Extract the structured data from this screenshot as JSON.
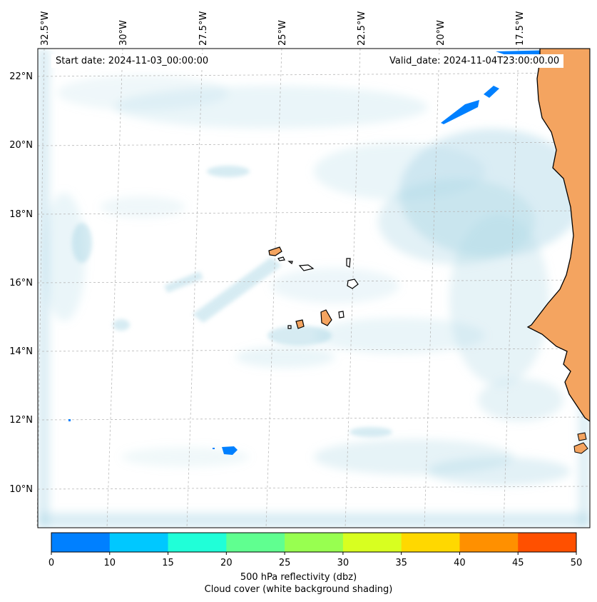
{
  "header": {
    "start_date": "Start date: 2024-11-03_00:00:00",
    "valid_date": "Valid_date: 2024-11-04T23:00:00.00"
  },
  "axes": {
    "lon_labels": [
      "32.5°W",
      "30°W",
      "27.5°W",
      "25°W",
      "22.5°W",
      "20°W",
      "17.5°W"
    ],
    "lat_labels": [
      "22°N",
      "20°N",
      "18°N",
      "16°N",
      "14°N",
      "12°N",
      "10°N"
    ]
  },
  "colorbar": {
    "ticks": [
      "0",
      "10",
      "15",
      "20",
      "25",
      "30",
      "35",
      "40",
      "45",
      "50"
    ],
    "colors": [
      "#0080ff",
      "#00c8ff",
      "#20ffd8",
      "#60ff90",
      "#98ff50",
      "#d8ff20",
      "#ffd800",
      "#ff9000",
      "#ff5000"
    ],
    "label_line1": "500 hPa reflectivity (dbz)",
    "label_line2": "Cloud cover (white background shading)"
  },
  "colors": {
    "land": "#f4a460",
    "cloud": "#add8e6",
    "reflectivity_low": "#0080ff"
  }
}
